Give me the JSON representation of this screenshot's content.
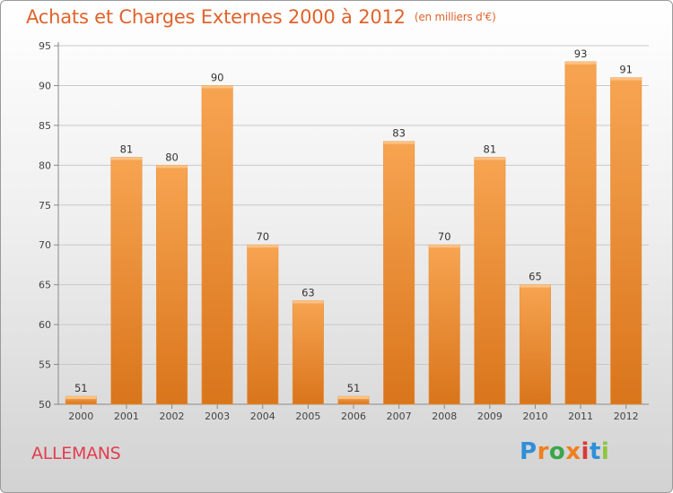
{
  "header": {
    "title": "Achats et Charges Externes 2000 à 2012",
    "unit": "(en milliers d'€)"
  },
  "footer": {
    "commune": "ALLEMANS",
    "logo_text": "Proxiti",
    "logo_colors": [
      "#2f8fd8",
      "#f07f1e",
      "#3aa64a",
      "#f07f1e",
      "#d83a3a",
      "#2f8fd8",
      "#8dc63f"
    ]
  },
  "chart_data": {
    "type": "bar",
    "categories": [
      "2000",
      "2001",
      "2002",
      "2003",
      "2004",
      "2005",
      "2006",
      "2007",
      "2008",
      "2009",
      "2010",
      "2011",
      "2012"
    ],
    "values": [
      51,
      81,
      80,
      90,
      70,
      63,
      51,
      83,
      70,
      81,
      65,
      93,
      91
    ],
    "ylim": [
      50,
      95
    ],
    "yticks": [
      50,
      55,
      60,
      65,
      70,
      75,
      80,
      85,
      90,
      95
    ],
    "grid": true,
    "bar_color_top": "#f7a451",
    "bar_color_bottom": "#d9751b",
    "label_color": "#333333"
  }
}
